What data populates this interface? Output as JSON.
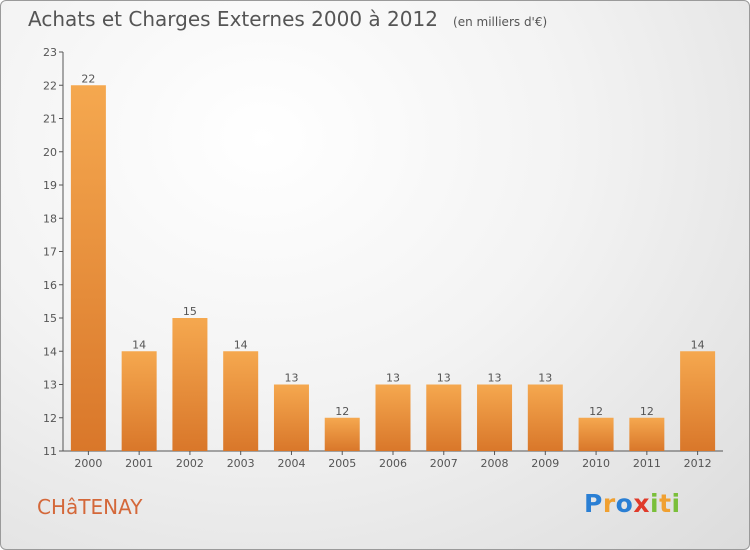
{
  "title": "Achats et Charges Externes 2000 à 2012",
  "unit_note": "(en milliers d'€)",
  "commune": "CHâTENAY",
  "logo_text": "Proxiti",
  "colors": {
    "bar_light": "#f5a84f",
    "bar_dark": "#d9772a",
    "axis": "#555555",
    "commune_text": "#d4683a"
  },
  "chart_data": {
    "type": "bar",
    "categories": [
      "2000",
      "2001",
      "2002",
      "2003",
      "2004",
      "2005",
      "2006",
      "2007",
      "2008",
      "2009",
      "2010",
      "2011",
      "2012"
    ],
    "values": [
      22,
      14,
      15,
      14,
      13,
      12,
      13,
      13,
      13,
      13,
      12,
      12,
      14
    ],
    "ylim": [
      11,
      23
    ],
    "yticks": [
      11,
      12,
      13,
      14,
      15,
      16,
      17,
      18,
      19,
      20,
      21,
      22,
      23
    ],
    "grid": false,
    "legend": "none"
  }
}
